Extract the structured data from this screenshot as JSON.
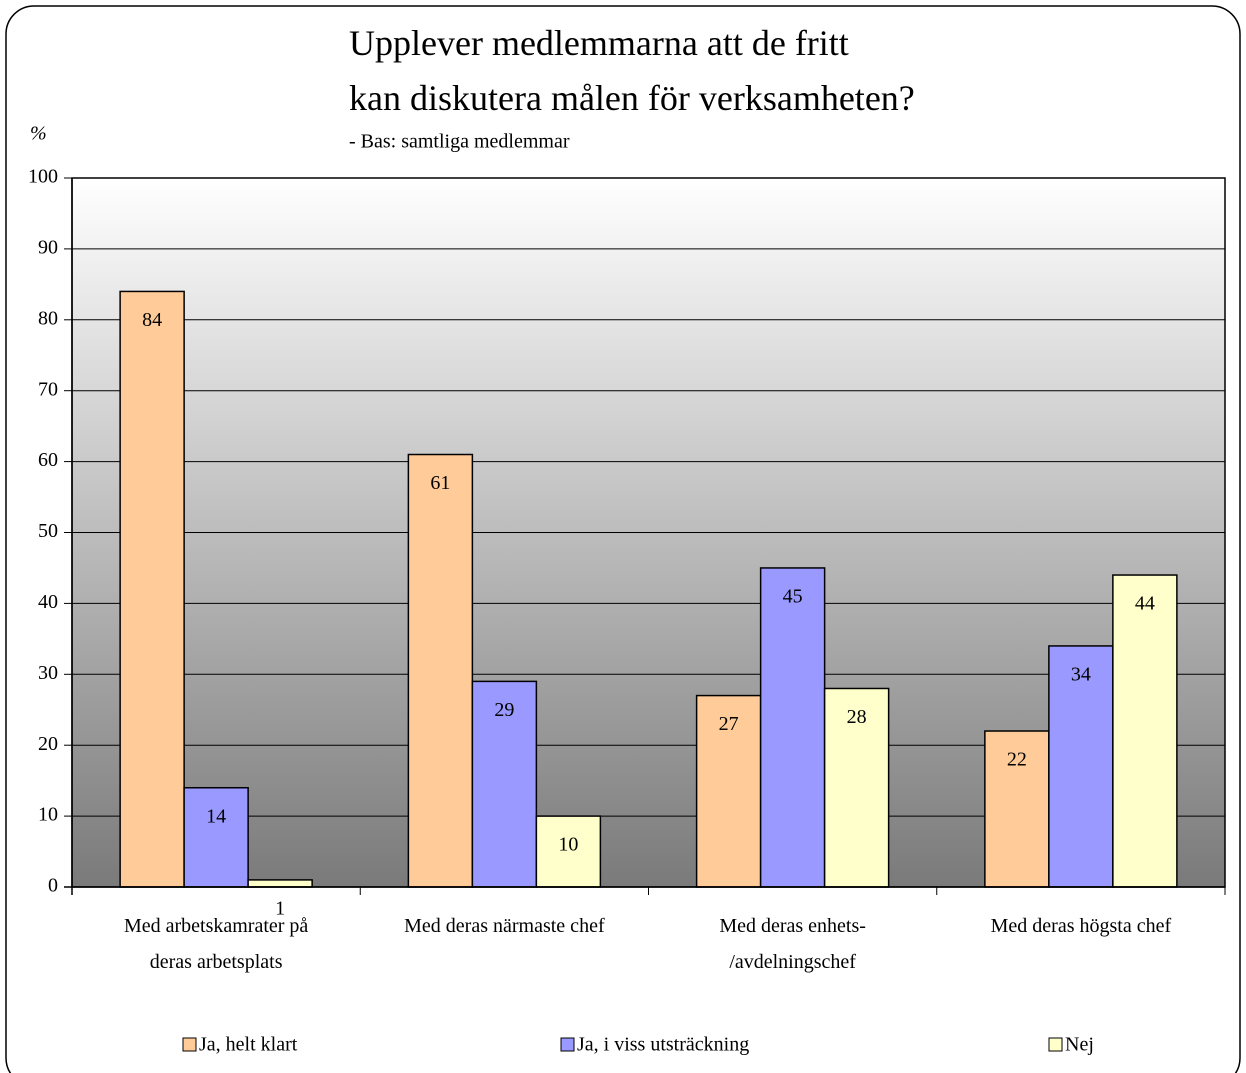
{
  "chart_data": {
    "type": "bar",
    "title": "Upplever medlemmarna att de fritt\nkan diskutera målen för verksamheten?",
    "subtitle": "- Bas: samtliga medlemmar",
    "y_label": "%",
    "categories": [
      "Med arbetskamrater på\nderas arbetsplats",
      "Med deras närmaste chef",
      "Med deras enhets-\n/avdelningschef",
      "Med deras högsta chef"
    ],
    "series": [
      {
        "name": "Ja, helt klart",
        "color": "#ffcc99",
        "values": [
          84,
          61,
          27,
          22
        ]
      },
      {
        "name": "Ja, i viss utsträckning",
        "color": "#9999ff",
        "values": [
          14,
          29,
          45,
          34
        ]
      },
      {
        "name": "Nej",
        "color": "#ffffcc",
        "values": [
          1,
          10,
          28,
          44
        ]
      }
    ],
    "ylim": [
      0,
      100
    ],
    "yticks": [
      0,
      10,
      20,
      30,
      40,
      50,
      60,
      70,
      80,
      90,
      100
    ],
    "grid": true,
    "legend": "bottom"
  }
}
